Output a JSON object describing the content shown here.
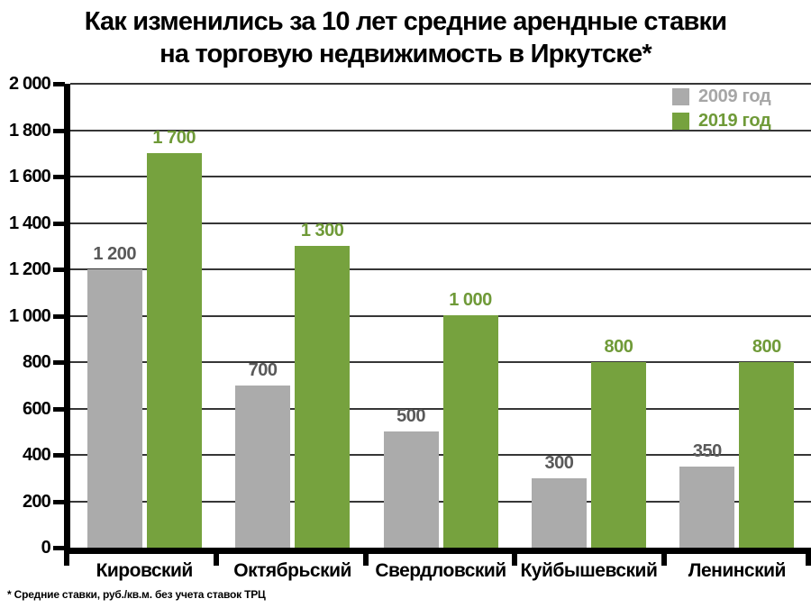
{
  "title": {
    "line1": "Как изменились за 10 лет средние арендные ставки",
    "line2": "на торговую недвижимость в Иркутске*"
  },
  "footnote": "* Средние ставки, руб./кв.м. без учета ставок ТРЦ",
  "colors": {
    "bar_2009": "#ABABAB",
    "bar_2019": "#76A23E",
    "label_2009": "#595959",
    "label_2019": "#6F9A38",
    "legend_2009_text": "#A6A6A6",
    "legend_2019_text": "#6F9A38",
    "gridline": "#363636",
    "axis": "#000000"
  },
  "legend": [
    {
      "label": "2009 год",
      "swatch": "#ABABAB",
      "text_color": "#A6A6A6"
    },
    {
      "label": "2019 год",
      "swatch": "#76A23E",
      "text_color": "#6F9A38"
    }
  ],
  "chart_data": {
    "type": "bar",
    "title": "Как изменились за 10 лет средние арендные ставки на торговую недвижимость в Иркутске*",
    "categories": [
      "Кировский",
      "Октябрьский",
      "Свердловский",
      "Куйбышевский",
      "Ленинский"
    ],
    "series": [
      {
        "name": "2009 год",
        "values": [
          1200,
          700,
          500,
          300,
          350
        ]
      },
      {
        "name": "2019 год",
        "values": [
          1700,
          1300,
          1000,
          800,
          800
        ]
      }
    ],
    "bar_labels": [
      [
        "1 200",
        "700",
        "500",
        "300",
        "350"
      ],
      [
        "1 700",
        "1 300",
        "1 000",
        "800",
        "800"
      ]
    ],
    "ylim": [
      0,
      2000
    ],
    "ytick_step": 200,
    "ytick_labels": [
      "0",
      "200",
      "400",
      "600",
      "800",
      "1 000",
      "1 200",
      "1 400",
      "1 600",
      "1 800",
      "2 000"
    ],
    "xlabel": "",
    "ylabel": "",
    "grid": true,
    "legend_position": "top-right"
  }
}
